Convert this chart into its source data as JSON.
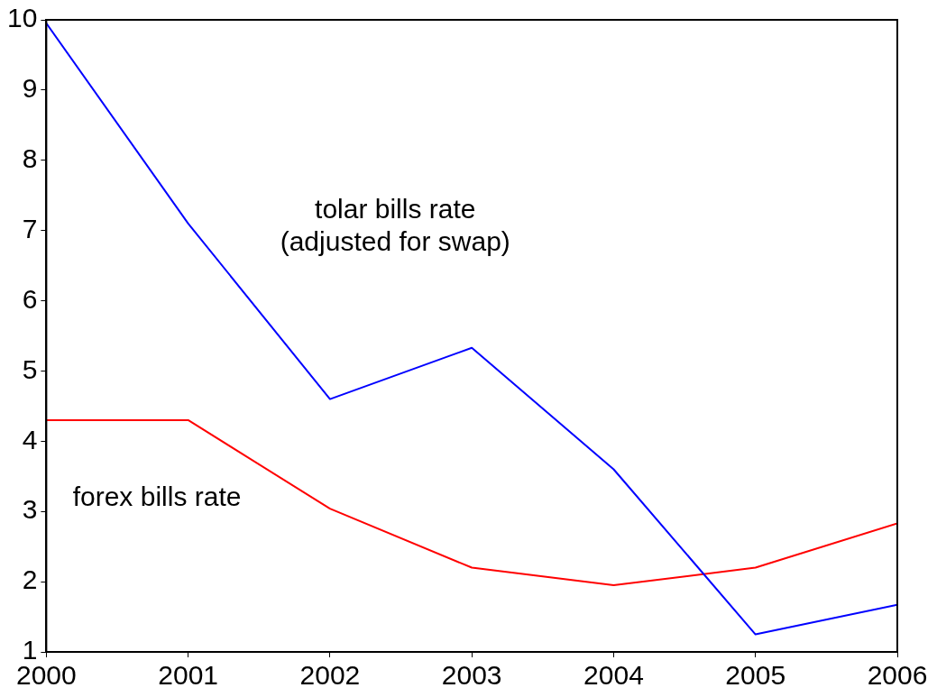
{
  "chart_data": {
    "type": "line",
    "x": [
      2000,
      2001,
      2002,
      2003,
      2004,
      2005,
      2006
    ],
    "xlim": [
      2000,
      2006
    ],
    "xticks": [
      2000,
      2001,
      2002,
      2003,
      2004,
      2005,
      2006
    ],
    "ylim": [
      1,
      10
    ],
    "yticks": [
      1,
      2,
      3,
      4,
      5,
      6,
      7,
      8,
      9,
      10
    ],
    "grid": false,
    "legend": false,
    "marker": "none",
    "line_style": "solid",
    "series": [
      {
        "name": "tolar bills rate (adjusted for swap)",
        "color": "#0000ff",
        "values": [
          9.95,
          7.1,
          4.6,
          5.33,
          3.6,
          1.25,
          1.67
        ]
      },
      {
        "name": "forex bills rate",
        "color": "#ff0000",
        "values": [
          4.3,
          4.3,
          3.04,
          2.2,
          1.95,
          2.2,
          2.83
        ]
      }
    ]
  }
}
